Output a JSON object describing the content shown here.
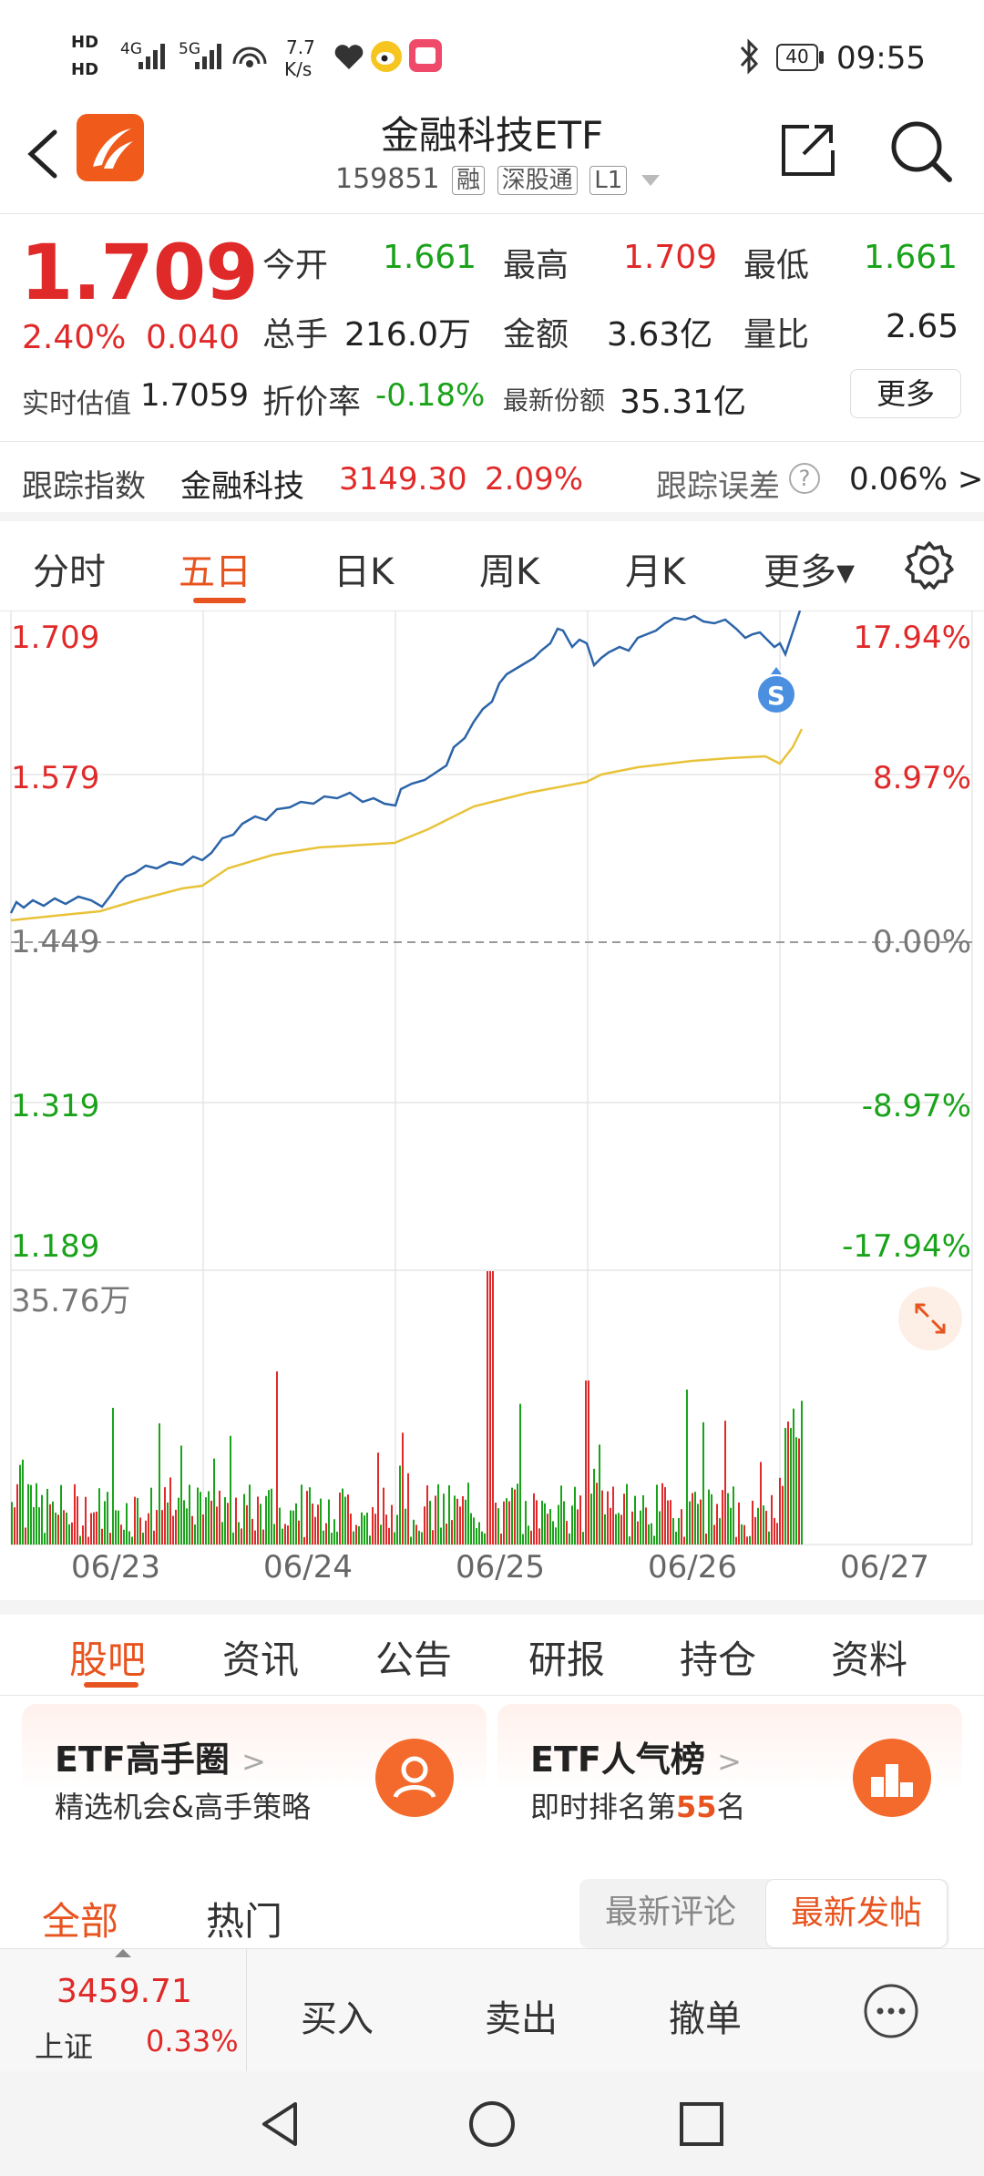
{
  "status_bar": {
    "hd1": "HD",
    "hd2": "HD",
    "net4g": "4G",
    "net5g": "5G",
    "speed_top": "7.7",
    "speed_bottom": "K/s",
    "battery": "40",
    "time": "09:55"
  },
  "header": {
    "title": "金融科技ETF",
    "code": "159851",
    "tags": [
      "融",
      "深股通",
      "L1"
    ]
  },
  "quote": {
    "price": "1.709",
    "change_pct": "2.40%",
    "change_abs": "0.040",
    "open_label": "今开",
    "open": "1.661",
    "high_label": "最高",
    "high": "1.709",
    "low_label": "最低",
    "low": "1.661",
    "volume_label": "总手",
    "volume": "216.0万",
    "amount_label": "金额",
    "amount": "3.63亿",
    "ratio_label": "量比",
    "ratio": "2.65",
    "iopv_label": "实时估值",
    "iopv": "1.7059",
    "discount_label": "折价率",
    "discount": "-0.18%",
    "shares_label": "最新份额",
    "shares": "35.31亿",
    "more": "更多"
  },
  "tracking": {
    "label": "跟踪指数",
    "index_name": "金融科技",
    "index_value": "3149.30",
    "index_pct": "2.09%",
    "error_label": "跟踪误差",
    "error_help": "?",
    "error_value": "0.06% >"
  },
  "chart_tabs": [
    "分时",
    "五日",
    "日K",
    "周K",
    "月K",
    "更多▾"
  ],
  "chart": {
    "left_axis": [
      "1.709",
      "1.579",
      "1.449",
      "1.319",
      "1.189"
    ],
    "right_axis": [
      "17.94%",
      "8.97%",
      "0.00%",
      "-8.97%",
      "-17.94%"
    ],
    "volume_max": "35.76万",
    "marker": "S",
    "dates": [
      "06/23",
      "06/24",
      "06/25",
      "06/26",
      "06/27"
    ]
  },
  "chart_data": {
    "type": "line",
    "x": [
      "06/23",
      "06/24",
      "06/25",
      "06/26",
      "06/27"
    ],
    "series": [],
    "ylim": [
      1.189,
      1.709
    ]
  },
  "info_tabs": [
    "股吧",
    "资讯",
    "公告",
    "研报",
    "持仓",
    "资料"
  ],
  "cards": [
    {
      "title": "ETF高手圈",
      "arrow": ">",
      "sub": "精选机会&高手策略"
    },
    {
      "title": "ETF人气榜",
      "arrow": ">",
      "sub_prefix": "即时排名第",
      "rank": "55",
      "sub_suffix": "名"
    }
  ],
  "feed_tabs": [
    "全部",
    "热门"
  ],
  "feed_sort": [
    "最新评论",
    "最新发帖"
  ],
  "trade_bar": {
    "index_value": "3459.71",
    "index_name": "上证",
    "index_pct": "0.33%",
    "buttons": [
      "买入",
      "卖出",
      "撤单"
    ]
  },
  "colors": {
    "up": "#e02a2a",
    "down": "#1aa31a",
    "accent": "#e8541f",
    "price_line": "#2c64a8",
    "avg_line": "#e8c33a"
  }
}
